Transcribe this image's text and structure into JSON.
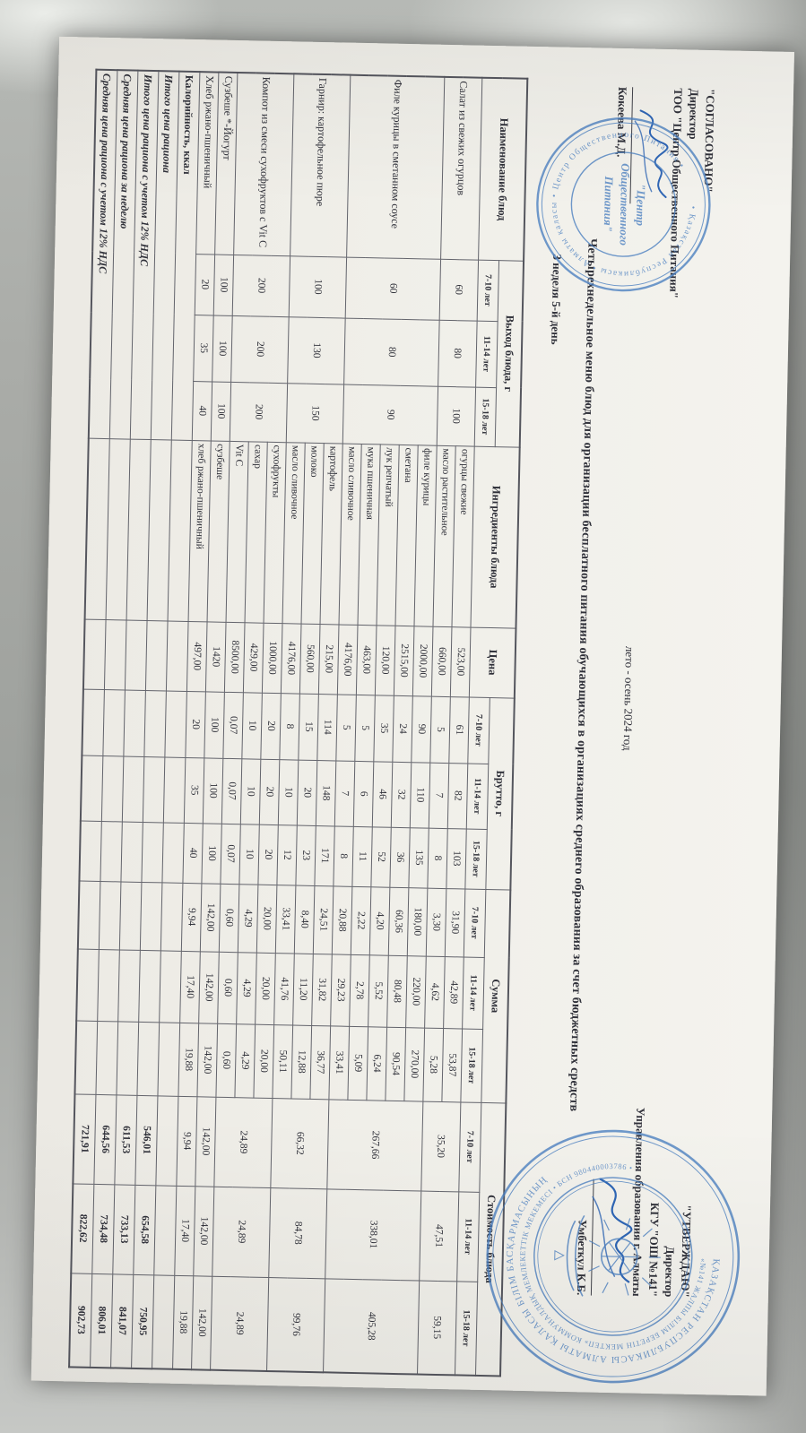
{
  "approved_left": {
    "line1": "\"СОГЛАСОВАНО\"",
    "line2": "Директор",
    "line3": "ТОО \"Центр Общественного Питания\"",
    "name": "Кокеева М.Д."
  },
  "approved_right": {
    "line1": "\"УТВЕРЖДАЮ\"",
    "line2": "Директор",
    "line3": "КГУ \"ОШ №141\"",
    "line4": "Управления образования г. Алматы",
    "name": "Умбеткул К.Б."
  },
  "season_label": "лето - осень 2024 год",
  "document_title": "Четырехнедельное меню блюд для организации бесплатного питания обучающихся в организациях среднего образования за счет бюджетных средств",
  "week_label": "3 неделя 5-й день",
  "stamps": {
    "cop_center_line1": "\"Центр",
    "cop_center_line2": "Общественного",
    "cop_center_line3": "Питания\"",
    "cop_ring": "• Қазақстан Республикасы • Алматы қаласы • Центр Общественного Питания •",
    "school_ring_outer": "ҚАЗАҚСТАН РЕСПУБЛИКАСЫ АЛМАТЫ ҚАЛАСЫ БІЛІМ БАСҚАРМАСЫНЫҢ",
    "school_ring_inner": "«№141 ЖАЛПЫ БІЛІМ БЕРЕТІН МЕКТЕП» КОММУНАЛДЫҚ МЕМЛЕКЕТТІК МЕКЕМЕСІ • БСН 980440003786 •"
  },
  "colors": {
    "stamp_blue": "#4a7fc0",
    "paper": "#f2f1ec",
    "text": "#30313a"
  },
  "table": {
    "headers": {
      "name": "Наименование блюд",
      "out": "Выход блюда, г",
      "ingredients": "Ингредиенты блюда",
      "price": "Цена",
      "brutto": "Брутто, г",
      "summa": "Сумма",
      "cost": "Стоимость блюда",
      "ages": [
        "7-10 лет",
        "11-14 лет",
        "15-18 лет"
      ]
    },
    "groups": [
      {
        "name": "Салат из свежих огурцов",
        "out": [
          "60",
          "80",
          "100"
        ],
        "cost": [
          "35,20",
          "47,51",
          "59,15"
        ],
        "ingredients": [
          {
            "name": "огурцы свежие",
            "price": "523,00",
            "brutto": [
              "61",
              "82",
              "103"
            ],
            "summa": [
              "31,90",
              "42,89",
              "53,87"
            ]
          },
          {
            "name": "масло растительное",
            "price": "660,00",
            "brutto": [
              "5",
              "7",
              "8"
            ],
            "summa": [
              "3,30",
              "4,62",
              "5,28"
            ]
          }
        ]
      },
      {
        "name": "Филе курицы в сметанном соусе",
        "out": [
          "60",
          "80",
          "90"
        ],
        "cost": [
          "267,66",
          "338,01",
          "405,28"
        ],
        "ingredients": [
          {
            "name": "филе курицы",
            "price": "2000,00",
            "brutto": [
              "90",
              "110",
              "135"
            ],
            "summa": [
              "180,00",
              "220,00",
              "270,00"
            ]
          },
          {
            "name": "сметана",
            "price": "2515,00",
            "brutto": [
              "24",
              "32",
              "36"
            ],
            "summa": [
              "60,36",
              "80,48",
              "90,54"
            ]
          },
          {
            "name": "лук репчатый",
            "price": "120,00",
            "brutto": [
              "35",
              "46",
              "52"
            ],
            "summa": [
              "4,20",
              "5,52",
              "6,24"
            ]
          },
          {
            "name": "мука пшеничная",
            "price": "463,00",
            "brutto": [
              "5",
              "6",
              "11"
            ],
            "summa": [
              "2,22",
              "2,78",
              "5,09"
            ]
          },
          {
            "name": "масло сливочное",
            "price": "4176,00",
            "brutto": [
              "5",
              "7",
              "8"
            ],
            "summa": [
              "20,88",
              "29,23",
              "33,41"
            ]
          }
        ]
      },
      {
        "name": "Гарнир: картофельное пюре",
        "out": [
          "100",
          "130",
          "150"
        ],
        "cost": [
          "66,32",
          "84,78",
          "99,76"
        ],
        "ingredients": [
          {
            "name": "картофель",
            "price": "215,00",
            "brutto": [
              "114",
              "148",
              "171"
            ],
            "summa": [
              "24,51",
              "31,82",
              "36,77"
            ]
          },
          {
            "name": "молоко",
            "price": "560,00",
            "brutto": [
              "15",
              "20",
              "23"
            ],
            "summa": [
              "8,40",
              "11,20",
              "12,88"
            ]
          },
          {
            "name": "масло сливочное",
            "price": "4176,00",
            "brutto": [
              "8",
              "10",
              "12"
            ],
            "summa": [
              "33,41",
              "41,76",
              "50,11"
            ]
          }
        ]
      },
      {
        "name": "Компот из смеси сухофруктов с Vit C",
        "out": [
          "200",
          "200",
          "200"
        ],
        "cost": [
          "24,89",
          "24,89",
          "24,89"
        ],
        "ingredients": [
          {
            "name": "сухофрукты",
            "price": "1000,00",
            "brutto": [
              "20",
              "20",
              "20"
            ],
            "summa": [
              "20,00",
              "20,00",
              "20,00"
            ]
          },
          {
            "name": "сахар",
            "price": "429,00",
            "brutto": [
              "10",
              "10",
              "10"
            ],
            "summa": [
              "4,29",
              "4,29",
              "4,29"
            ]
          },
          {
            "name": "Vit C",
            "price": "8500,00",
            "brutto": [
              "0,07",
              "0,07",
              "0,07"
            ],
            "summa": [
              "0,60",
              "0,60",
              "0,60"
            ]
          }
        ]
      },
      {
        "name": "Сузбеше *-Йогурт",
        "out": [
          "100",
          "100",
          "100"
        ],
        "cost": [
          "142,00",
          "142,00",
          "142,00"
        ],
        "ingredients": [
          {
            "name": "сузбеше",
            "price": "1420",
            "brutto": [
              "100",
              "100",
              "100"
            ],
            "summa": [
              "142,00",
              "142,00",
              "142,00"
            ]
          }
        ]
      },
      {
        "name": "Хлеб ржано-пшеничный",
        "out": [
          "20",
          "35",
          "40"
        ],
        "cost": [
          "9,94",
          "17,40",
          "19,88"
        ],
        "ingredients": [
          {
            "name": "хлеб ржано-пшеничный",
            "price": "497,00",
            "brutto": [
              "20",
              "35",
              "40"
            ],
            "summa": [
              "9,94",
              "17,40",
              "19,88"
            ]
          }
        ]
      }
    ],
    "summary": [
      {
        "label": "Калорийность, ккал",
        "italic": false,
        "values": [
          "",
          "",
          ""
        ]
      },
      {
        "label": "Итого цена рациона",
        "italic": true,
        "values": [
          "546,01",
          "654,58",
          "750,95"
        ]
      },
      {
        "label": "Итого цена рациона с учетом 12% НДС",
        "italic": true,
        "values": [
          "611,53",
          "733,13",
          "841,07"
        ]
      },
      {
        "label": "Средняя цена рациона за неделю",
        "italic": true,
        "values": [
          "644,56",
          "734,48",
          "806,01"
        ]
      },
      {
        "label": "Средняя цена рациона с учетом 12% НДС",
        "italic": true,
        "values": [
          "721,91",
          "822,62",
          "902,73"
        ]
      }
    ]
  }
}
